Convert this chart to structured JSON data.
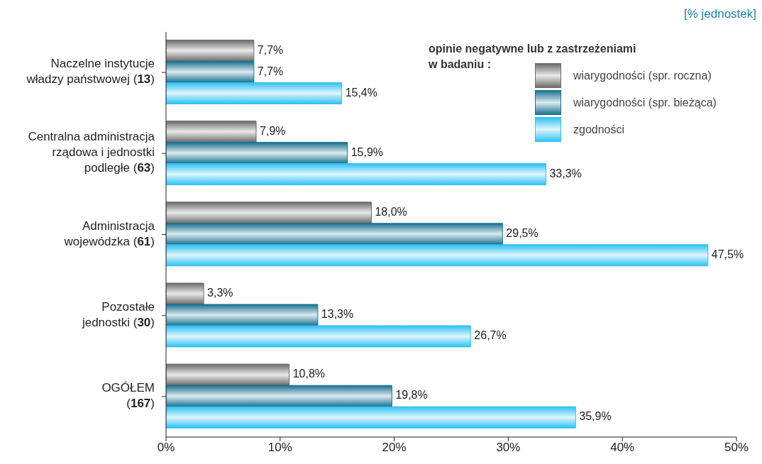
{
  "chart_data": {
    "type": "bar",
    "orientation": "horizontal",
    "annotations": [
      "[% jednostek]"
    ],
    "legend_title": "opinie negatywne lub z zastrzeżeniami\nw badaniu :",
    "legend": "top right",
    "categories": [
      "Naczelne instytucje\nwładzy państwowej (13)",
      "Centralna administracja\nrządowa  i jednostki\npodległe (63)",
      "Administracja\nwojewódzka (61)",
      "Pozostałe\njednostki (30)",
      "OGÓŁEM\n(167)"
    ],
    "series": [
      {
        "name": "wiarygodności (spr. roczna)",
        "color": "#6a6a6a",
        "values": [
          7.7,
          7.9,
          18.0,
          3.3,
          10.8
        ],
        "value_labels": [
          "7,7%",
          "7,9%",
          "18,0%",
          "3,3%",
          "10,8%"
        ]
      },
      {
        "name": "wiarygodności (spr. bieżąca)",
        "color": "#17708f",
        "values": [
          7.7,
          15.9,
          29.5,
          13.3,
          19.8
        ],
        "value_labels": [
          "7,7%",
          "15,9%",
          "29,5%",
          "13,3%",
          "19,8%"
        ]
      },
      {
        "name": "zgodności",
        "color": "#2cc0f2",
        "values": [
          15.4,
          33.3,
          47.5,
          26.7,
          35.9
        ],
        "value_labels": [
          "15,4%",
          "33,3%",
          "47,5%",
          "26,7%",
          "35,9%"
        ]
      }
    ],
    "xlim": [
      0,
      50
    ],
    "xticks": [
      {
        "value": 0,
        "label": "0%"
      },
      {
        "value": 10,
        "label": "10%"
      },
      {
        "value": 20,
        "label": "20%"
      },
      {
        "value": 30,
        "label": "30%"
      },
      {
        "value": 40,
        "label": "40%"
      },
      {
        "value": 50,
        "label": "50%"
      }
    ]
  }
}
